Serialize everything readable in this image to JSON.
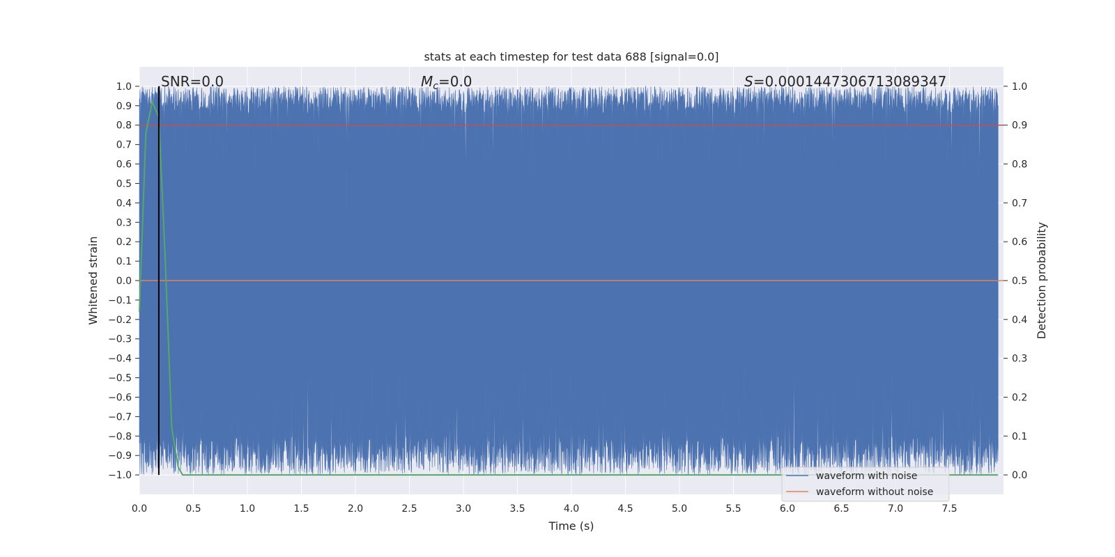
{
  "chart_data": {
    "type": "line",
    "title": "stats at each timestep for test data 688 [signal=0.0]",
    "xlabel": "Time (s)",
    "ylabel": "Whitened strain",
    "y2label": "Detection probability",
    "xlim": [
      0.0,
      8.0
    ],
    "ylim": [
      -1.1,
      1.1
    ],
    "y2lim": [
      -0.05,
      1.05
    ],
    "xticks": [
      "0.0",
      "0.5",
      "1.0",
      "1.5",
      "2.0",
      "2.5",
      "3.0",
      "3.5",
      "4.0",
      "4.5",
      "5.0",
      "5.5",
      "6.0",
      "6.5",
      "7.0",
      "7.5"
    ],
    "yticks": [
      "1.0",
      "0.9",
      "0.8",
      "0.7",
      "0.6",
      "0.5",
      "0.4",
      "0.3",
      "0.2",
      "0.1",
      "0.0",
      "−0.1",
      "−0.2",
      "−0.3",
      "−0.4",
      "−0.5",
      "−0.6",
      "−0.7",
      "−0.8",
      "−0.9",
      "−1.0"
    ],
    "y2ticks": [
      "1.0",
      "0.9",
      "0.8",
      "0.7",
      "0.6",
      "0.5",
      "0.4",
      "0.3",
      "0.2",
      "0.1",
      "0.0"
    ],
    "grid": true,
    "legend_position": "lower-right",
    "annotations": {
      "snr": "SNR=0.0",
      "mc_symbol": "M",
      "mc_sub": "c",
      "mc_value": "=0.0",
      "s_symbol": "S",
      "s_value": "=0.0001447306713089347"
    },
    "series": [
      {
        "name": "waveform with noise",
        "color": "#4c72b0",
        "style": "dense noise spanning about -1.0 to 1.0"
      },
      {
        "name": "waveform without noise",
        "color": "#dd8452",
        "x": [
          0.0,
          8.0
        ],
        "y": [
          0.0,
          0.0
        ]
      },
      {
        "color": "#55a868",
        "axis": "right",
        "x": [
          0.0,
          0.06,
          0.12,
          0.18,
          0.24,
          0.3,
          0.36,
          0.4,
          7.95
        ],
        "y": [
          0.42,
          0.88,
          0.96,
          0.92,
          0.55,
          0.12,
          0.02,
          0.0,
          0.0
        ]
      },
      {
        "color": "#c44e52",
        "axis": "right",
        "x": [
          0.0,
          8.0
        ],
        "y": [
          0.9,
          0.9
        ]
      }
    ],
    "marker_line": {
      "x": 0.18,
      "color": "#000000"
    }
  }
}
